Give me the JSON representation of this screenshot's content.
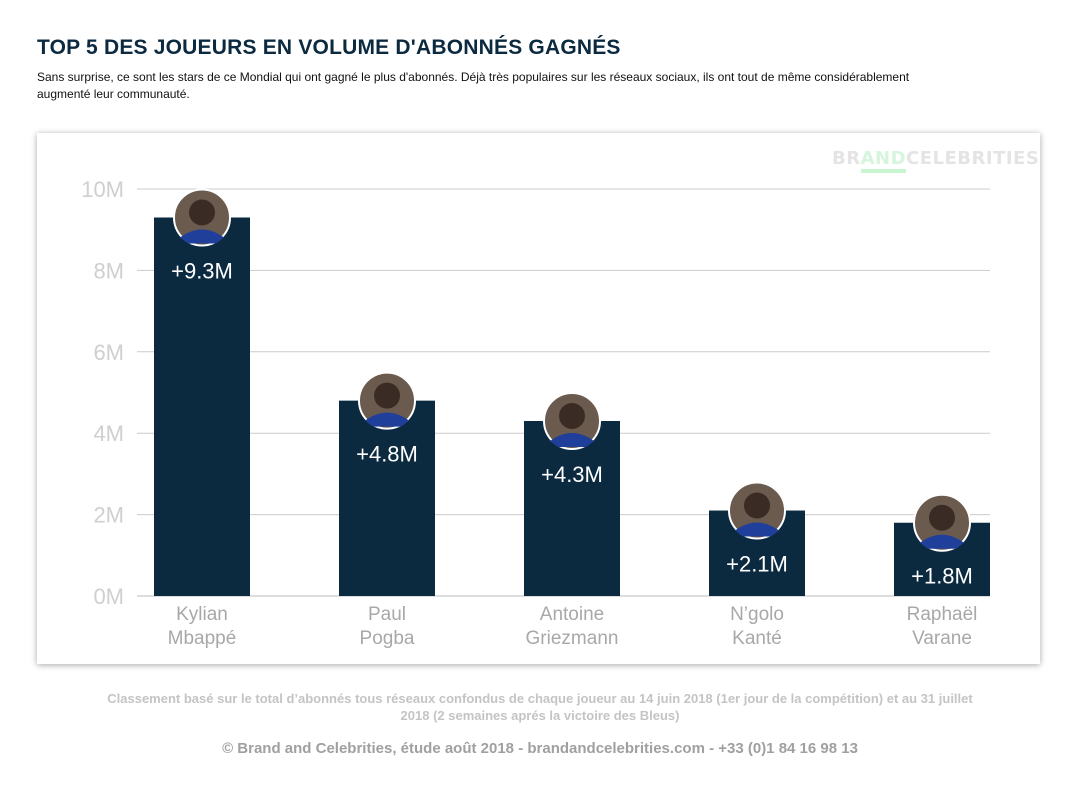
{
  "header": {
    "title_pre": "TOP 5 DES JOUEURS EN ",
    "title_bold": "VOLUME",
    "title_post": " D'ABONNÉS GAGNÉS",
    "subtitle": "Sans surprise, ce sont les stars de ce Mondial qui ont gagné le plus d'abonnés. Déjà très populaires sur les réseaux sociaux, ils ont tout de même considérablement augmenté leur communauté."
  },
  "logo": {
    "part1": "BR",
    "part2": "AND",
    "part3": "CELEBRITIES"
  },
  "chart_data": {
    "type": "bar",
    "categories": [
      [
        "Kylian",
        "Mbappé"
      ],
      [
        "Paul",
        "Pogba"
      ],
      [
        "Antoine",
        "Griezmann"
      ],
      [
        "N’golo",
        "Kanté"
      ],
      [
        "Raphaël",
        "Varane"
      ]
    ],
    "values": [
      9.3,
      4.8,
      4.3,
      2.1,
      1.8
    ],
    "data_labels": [
      "+9.3M",
      "+4.8M",
      "+4.3M",
      "+2.1M",
      "+1.8M"
    ],
    "yticks": [
      "0M",
      "2M",
      "4M",
      "6M",
      "8M",
      "10M"
    ],
    "ylim": [
      0,
      10
    ],
    "unit": "M",
    "grid": true,
    "bar_color": "#0b2a40",
    "grid_color": "#cccccc"
  },
  "footer": {
    "note": "Classement basé sur le total d’abonnés tous réseaux confondus de chaque joueur au 14 juin 2018 (1er jour de la compétition) et au 31 juillet 2018 (2 semaines aprés la victoire des Bleus)",
    "copyright": "© Brand and Celebrities, étude août 2018 - brandandcelebrities.com - +33 (0)1 84 16 98 13"
  }
}
